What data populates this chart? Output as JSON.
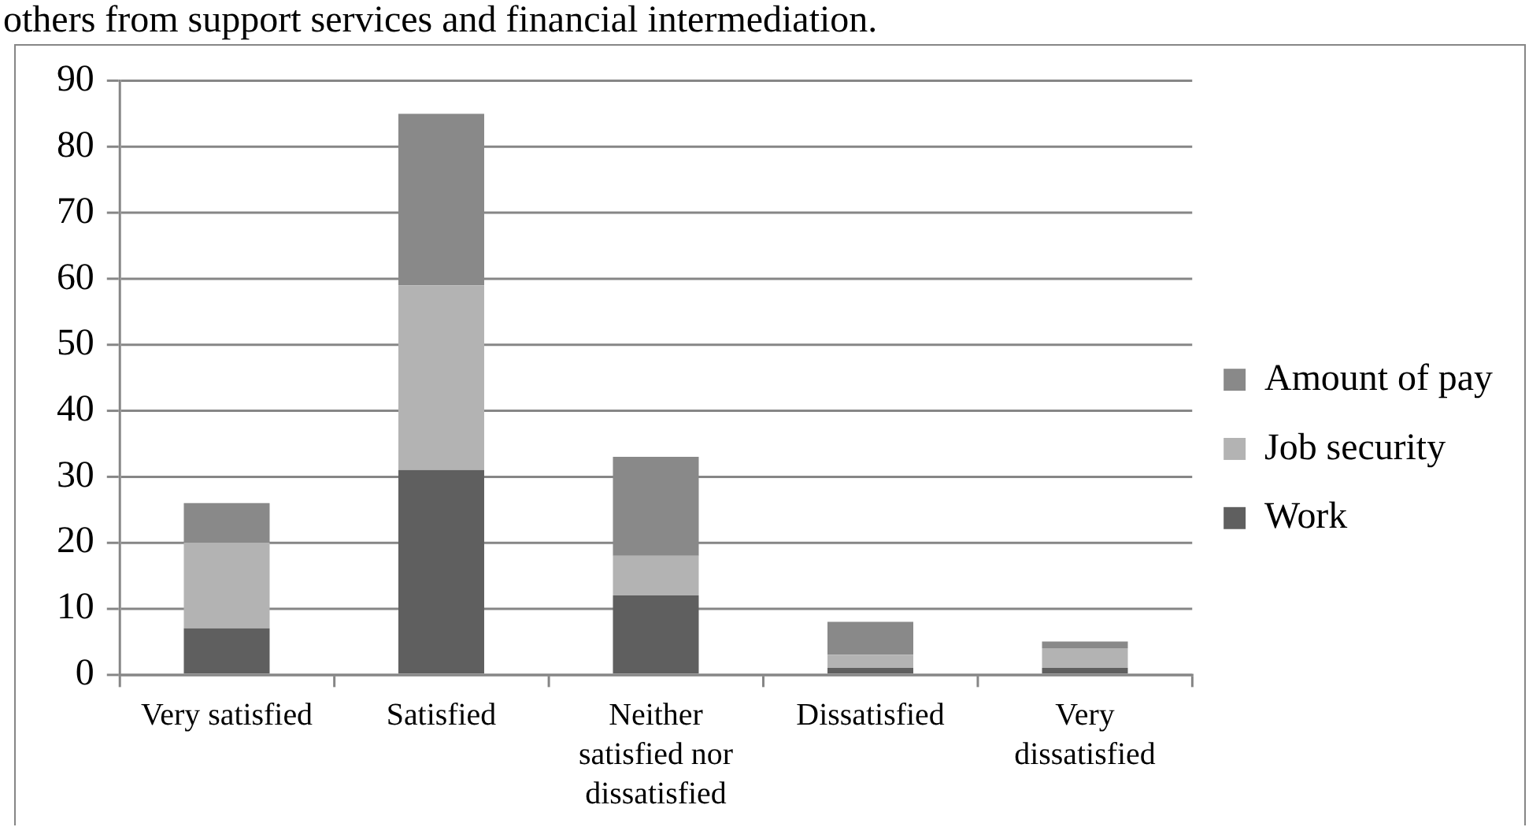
{
  "chart_data": {
    "type": "bar",
    "annotations": [
      "others from support services and financial intermediation."
    ],
    "categories": [
      "Very satisfied",
      "Satisfied",
      "Neither satisfied nor dissatisfied",
      "Dissatisfied",
      "Very dissatisfied"
    ],
    "series": [
      {
        "name": "Work",
        "color": "#5f5f5f",
        "values": [
          7,
          31,
          12,
          1,
          1
        ]
      },
      {
        "name": "Job security",
        "color": "#b3b3b3",
        "values": [
          13,
          28,
          6,
          2,
          3
        ]
      },
      {
        "name": "Amount of pay",
        "color": "#898989",
        "values": [
          6,
          26,
          15,
          5,
          1
        ]
      }
    ],
    "stacked": true,
    "ylim": [
      0,
      90
    ],
    "yticks": [
      0,
      10,
      20,
      30,
      40,
      50,
      60,
      70,
      80,
      90
    ],
    "grid": "y",
    "legend": "right"
  }
}
